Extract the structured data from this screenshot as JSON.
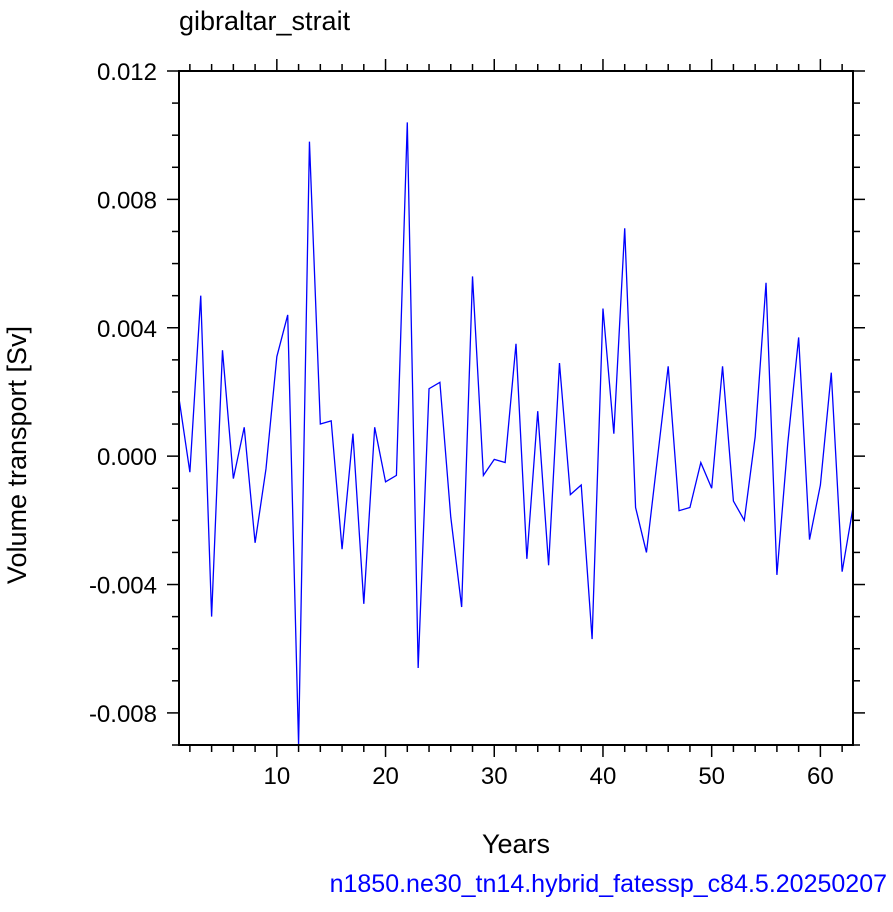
{
  "chart_data": {
    "type": "line",
    "title": "gibraltar_strait",
    "xlabel": "Years",
    "ylabel": "Volume transport [Sv]",
    "xlim": [
      1,
      63
    ],
    "ylim": [
      -0.009,
      0.012
    ],
    "x_ticks": [
      10,
      20,
      30,
      40,
      50,
      60
    ],
    "x_tick_labels": [
      "10",
      "20",
      "30",
      "40",
      "50",
      "60"
    ],
    "y_ticks": [
      -0.008,
      -0.004,
      0.0,
      0.004,
      0.008,
      0.012
    ],
    "y_tick_labels": [
      "-0.008",
      "-0.004",
      "0.000",
      "0.004",
      "0.008",
      "0.012"
    ],
    "grid": false,
    "line_color": "#0000ff",
    "series": [
      {
        "x": [
          1,
          2,
          3,
          4,
          5,
          6,
          7,
          8,
          9,
          10,
          11,
          12,
          13,
          14,
          15,
          16,
          17,
          18,
          19,
          20,
          21,
          22,
          23,
          24,
          25,
          26,
          27,
          28,
          29,
          30,
          31,
          32,
          33,
          34,
          35,
          36,
          37,
          38,
          39,
          40,
          41,
          42,
          43,
          44,
          45,
          46,
          47,
          48,
          49,
          50,
          51,
          52,
          53,
          54,
          55,
          56,
          57,
          58,
          59,
          60,
          61,
          62,
          63
        ],
        "values": [
          0.0018,
          -0.0005,
          0.005,
          -0.005,
          0.0033,
          -0.0007,
          0.0009,
          -0.0027,
          -0.0004,
          0.0031,
          0.0044,
          -0.009,
          0.0098,
          0.001,
          0.0011,
          -0.0029,
          0.0007,
          -0.0046,
          0.0009,
          -0.0008,
          -0.0006,
          0.0104,
          -0.0066,
          0.0021,
          0.0023,
          -0.0019,
          -0.0047,
          0.0056,
          -0.0006,
          -0.0001,
          -0.0002,
          0.0035,
          -0.0032,
          0.0014,
          -0.0034,
          0.0029,
          -0.0012,
          -0.0009,
          -0.0057,
          0.0046,
          0.0007,
          0.0071,
          -0.0016,
          -0.003,
          -0.0001,
          0.0028,
          -0.0017,
          -0.0016,
          -0.0002,
          -0.001,
          0.0028,
          -0.0014,
          -0.002,
          0.0006,
          0.0054,
          -0.0037,
          0.0004,
          0.0037,
          -0.0026,
          -0.0009,
          0.0026,
          -0.0036,
          -0.0016
        ]
      }
    ]
  },
  "caption": "n1850.ne30_tn14.hybrid_fatessp_c84.5.20250207"
}
